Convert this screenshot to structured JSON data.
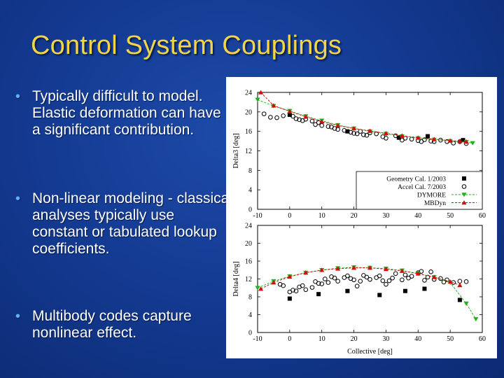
{
  "slide": {
    "title": "Control System Couplings",
    "bullets": [
      "Typically difficult to model. Elastic deformation can have a significant contribution.",
      "Non-linear modeling - classical analyses typically use constant or tabulated lookup coefficients.",
      "Multibody codes capture nonlinear effect."
    ]
  },
  "chart_data": [
    {
      "type": "scatter",
      "ylabel": "Delta3 [deg]",
      "xlim": [
        -10,
        60
      ],
      "ylim": [
        0,
        24
      ],
      "xticks": [
        -10,
        0,
        10,
        20,
        30,
        40,
        50,
        60
      ],
      "yticks": [
        0,
        4,
        8,
        12,
        16,
        20,
        24
      ],
      "legend_position": "bottom-right",
      "series": [
        {
          "name": "Geometry Cal. 1/2003",
          "marker": "filled-square",
          "color": "#000000",
          "x": [
            0,
            18,
            34,
            43,
            54
          ],
          "y": [
            19.4,
            16.0,
            14.7,
            15.0,
            14.2
          ]
        },
        {
          "name": "Accel Cal. 7/2003",
          "marker": "open-circle",
          "color": "#000000",
          "x": [
            -8,
            -6,
            -4,
            -2,
            1,
            2,
            3,
            4,
            5,
            7,
            8,
            9,
            10,
            12,
            13,
            14,
            15,
            17,
            19,
            20,
            21,
            22,
            23,
            24,
            25,
            27,
            29,
            30,
            33,
            35,
            36,
            38,
            40,
            41,
            42,
            44,
            45,
            47,
            49,
            51,
            53,
            55
          ],
          "y": [
            19.6,
            18.9,
            18.8,
            19.2,
            19.1,
            18.6,
            18.4,
            18.2,
            18.5,
            18.1,
            17.4,
            17.8,
            17.2,
            17.0,
            16.9,
            16.6,
            16.4,
            16.2,
            15.8,
            15.6,
            15.5,
            16.0,
            15.3,
            15.2,
            15.7,
            15.5,
            14.9,
            14.6,
            15.1,
            14.2,
            14.6,
            14.4,
            14.1,
            13.9,
            14.3,
            14.0,
            13.9,
            14.2,
            13.9,
            13.6,
            13.9,
            13.5
          ]
        },
        {
          "name": "DYMORE",
          "marker": "filled-triangle-down",
          "color": "#22b022",
          "line": "dashed",
          "x": [
            -10,
            -5,
            0,
            5,
            10,
            15,
            20,
            25,
            30,
            35,
            40,
            45,
            50,
            55,
            57
          ],
          "y": [
            22.5,
            21.2,
            20.2,
            19.1,
            18.2,
            17.3,
            16.6,
            16.0,
            15.5,
            15.0,
            14.6,
            14.3,
            14.0,
            13.8,
            13.6
          ]
        },
        {
          "name": "MBDyn",
          "marker": "filled-triangle-up",
          "color": "#d01010",
          "line": "dashed",
          "x": [
            -9,
            -5,
            0,
            5,
            10,
            15,
            20,
            25,
            30,
            35,
            40,
            45,
            50,
            53,
            55
          ],
          "y": [
            24.0,
            21.3,
            20.1,
            19.0,
            18.0,
            17.2,
            16.6,
            16.1,
            15.6,
            15.1,
            14.7,
            14.4,
            14.1,
            14.0,
            13.9
          ]
        }
      ]
    },
    {
      "type": "scatter",
      "xlabel": "Collective [deg]",
      "ylabel": "Delta4 [deg]",
      "xlim": [
        -10,
        60
      ],
      "ylim": [
        0,
        24
      ],
      "xticks": [
        -10,
        0,
        10,
        20,
        30,
        40,
        50,
        60
      ],
      "yticks": [
        0,
        4,
        8,
        12,
        16,
        20,
        24
      ],
      "series": [
        {
          "name": "Geometry Cal. 1/2003",
          "marker": "filled-square",
          "color": "#000000",
          "x": [
            0,
            9,
            18,
            28,
            36,
            42,
            53
          ],
          "y": [
            7.6,
            8.6,
            9.3,
            8.4,
            9.3,
            9.8,
            7.3
          ]
        },
        {
          "name": "Accel Cal. 7/2003",
          "marker": "open-circle",
          "color": "#000000",
          "x": [
            -3,
            -2,
            0,
            1,
            2,
            3,
            4,
            5,
            7,
            8,
            9,
            10,
            11,
            12,
            13,
            14,
            15,
            17,
            18,
            19,
            20,
            21,
            22,
            23,
            24,
            25,
            27,
            28,
            29,
            30,
            31,
            32,
            33,
            35,
            36,
            37,
            38,
            40,
            41,
            42,
            43,
            44,
            45,
            47,
            48,
            49,
            51,
            53,
            55
          ],
          "y": [
            10.8,
            10.5,
            9.1,
            9.5,
            9.3,
            10.2,
            10.5,
            9.6,
            10.1,
            11.4,
            11.0,
            10.9,
            12.0,
            11.2,
            12.5,
            12.2,
            11.5,
            12.3,
            12.7,
            12.1,
            11.8,
            10.4,
            11.5,
            12.8,
            12.4,
            11.9,
            12.3,
            12.7,
            11.6,
            10.8,
            11.6,
            12.2,
            13.2,
            11.8,
            12.9,
            12.2,
            12.6,
            13.4,
            13.7,
            11.7,
            12.4,
            13.6,
            11.9,
            12.1,
            11.3,
            11.8,
            11.2,
            11.5,
            11.4
          ]
        },
        {
          "name": "DYMORE",
          "marker": "filled-triangle-down",
          "color": "#22b022",
          "line": "dashed",
          "x": [
            -10,
            -5,
            0,
            5,
            10,
            15,
            20,
            25,
            30,
            35,
            40,
            45,
            50,
            55,
            58
          ],
          "y": [
            10.0,
            11.5,
            12.6,
            13.4,
            14.0,
            14.4,
            14.6,
            14.5,
            14.3,
            13.9,
            13.2,
            12.4,
            11.2,
            6.5,
            3.0
          ]
        },
        {
          "name": "MBDyn",
          "marker": "filled-triangle-up",
          "color": "#d01010",
          "line": "dashed",
          "x": [
            -9,
            -5,
            0,
            5,
            10,
            15,
            20,
            25,
            30,
            35,
            40,
            45,
            50,
            53
          ],
          "y": [
            9.8,
            11.2,
            12.5,
            13.4,
            14.0,
            14.3,
            14.5,
            14.5,
            14.2,
            13.8,
            13.2,
            12.4,
            11.4,
            10.6
          ]
        }
      ]
    }
  ]
}
